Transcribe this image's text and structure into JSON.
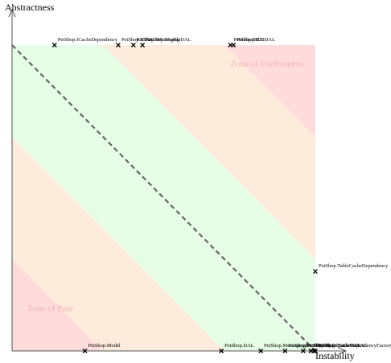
{
  "chart_data": {
    "type": "scatter",
    "xlabel": "Instability",
    "ylabel": "Abstractness",
    "xlim": [
      0,
      1
    ],
    "ylim": [
      0,
      1
    ],
    "zones": [
      {
        "label": "Zone of Uselessness",
        "color": "#ffdcdc"
      },
      {
        "label": "Zone of Pain",
        "color": "#ffdcdc"
      }
    ],
    "band_colors": {
      "pain": "#ffdcdc",
      "warn": "#fdebdc",
      "ok": "#e6fde6"
    },
    "main_sequence_color": "#666666",
    "points": [
      {
        "label": "PetShop.ICacheDependency",
        "x": 0.14,
        "y": 1.0
      },
      {
        "label": "PetShop.IDAL",
        "x": 0.35,
        "y": 1.0
      },
      {
        "label": "PetShop.IMessaging",
        "x": 0.4,
        "y": 1.0
      },
      {
        "label": "PetShop.IProfileDAL",
        "x": 0.43,
        "y": 1.0
      },
      {
        "label": "PetShop.IBLL",
        "x": 0.72,
        "y": 1.0
      },
      {
        "label": "PetShop.IDBDAL",
        "x": 0.73,
        "y": 1.0
      },
      {
        "label": "PetShop.TableCacheDependency",
        "x": 1.0,
        "y": 0.26
      },
      {
        "label": "PetShop.Model",
        "x": 0.24,
        "y": 0.0
      },
      {
        "label": "PetShop.DAL",
        "x": 0.69,
        "y": 0.0
      },
      {
        "label": "PetShop.MessagingFactory",
        "x": 0.82,
        "y": 0.0
      },
      {
        "label": "PetShop.Profile",
        "x": 0.9,
        "y": 0.0
      },
      {
        "label": "PetShop.BLL",
        "x": 0.96,
        "y": 0.0
      },
      {
        "label": "PetShop.SQLServerDAL",
        "x": 0.985,
        "y": 0.0
      },
      {
        "label": "PetShop.OracleDAL",
        "x": 0.995,
        "y": 0.0
      },
      {
        "label": "PetShop.CacheDependencyFactory",
        "x": 1.0,
        "y": 0.0
      }
    ]
  }
}
